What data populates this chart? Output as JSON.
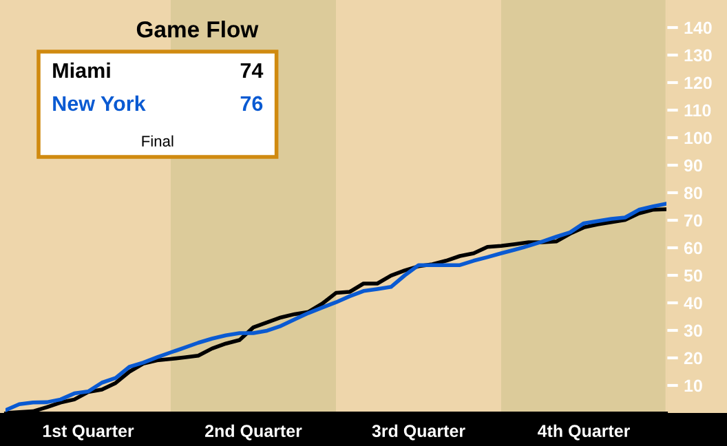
{
  "chart_data": {
    "type": "line",
    "title": "Game Flow",
    "categories": [
      null,
      null,
      null,
      null,
      null,
      null,
      "1st Quarter",
      null,
      null,
      null,
      null,
      null,
      null,
      null,
      null,
      null,
      null,
      null,
      "2nd Quarter",
      null,
      null,
      null,
      null,
      null,
      null,
      null,
      null,
      null,
      null,
      null,
      "3rd Quarter",
      null,
      null,
      null,
      null,
      null,
      null,
      null,
      null,
      null,
      null,
      null,
      "4th Quarter",
      null,
      null,
      null,
      null,
      null,
      null
    ],
    "ylim": [
      0,
      150
    ],
    "yticks": [
      10,
      20,
      30,
      40,
      50,
      60,
      70,
      80,
      90,
      100,
      110,
      120,
      130,
      140
    ],
    "series": [
      {
        "name": "Miami",
        "color": "#000000",
        "values": [
          0,
          0.3,
          0.6,
          2.1,
          3.8,
          4.9,
          7.6,
          8.5,
          10.9,
          15,
          17.9,
          19.1,
          19.6,
          20.2,
          20.8,
          23.4,
          25.2,
          26.5,
          31.1,
          32.9,
          34.7,
          35.9,
          36.7,
          39.7,
          43.6,
          44,
          47,
          47,
          49.9,
          51.8,
          53.3,
          54,
          55.3,
          57,
          58,
          60.3,
          60.7,
          61.3,
          62,
          62,
          62.3,
          65.1,
          67.4,
          68.5,
          69.3,
          70.1,
          72.5,
          73.8,
          74
        ]
      },
      {
        "name": "New York",
        "color": "#0a5ad2",
        "values": [
          1,
          3.2,
          3.8,
          3.9,
          4.9,
          7.1,
          7.8,
          11,
          12.7,
          16.8,
          18.3,
          20.2,
          22,
          23.7,
          25.5,
          27,
          28.2,
          29,
          29,
          29.9,
          31.6,
          34,
          36.3,
          38.3,
          40.2,
          42.4,
          44.3,
          45,
          45.8,
          50,
          53.7,
          53.7,
          53.7,
          53.7,
          55.3,
          56.6,
          58,
          59.3,
          60.7,
          62.3,
          64,
          65.6,
          68.9,
          69.7,
          70.5,
          71,
          73.8,
          75,
          76
        ]
      }
    ],
    "line_style": "solid",
    "marker": "none",
    "grid": false,
    "annotations": [
      "74",
      "76",
      "Final"
    ]
  }
}
